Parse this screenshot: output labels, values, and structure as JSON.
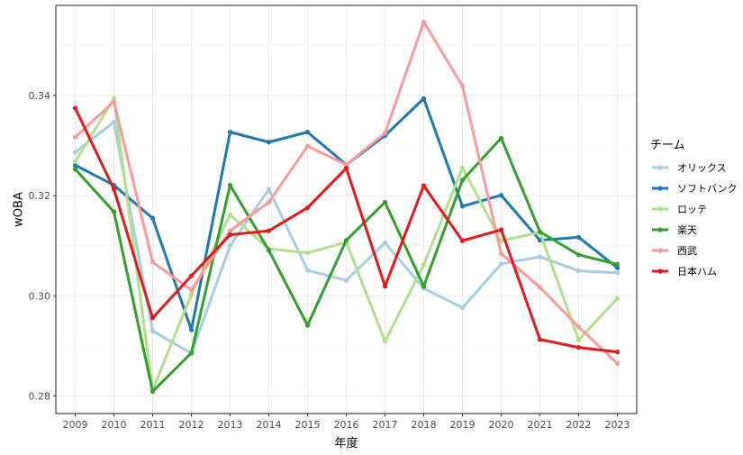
{
  "chart_data": {
    "type": "line",
    "xlabel": "年度",
    "ylabel": "wOBA",
    "x": [
      2009,
      2010,
      2011,
      2012,
      2013,
      2014,
      2015,
      2016,
      2017,
      2018,
      2019,
      2020,
      2021,
      2022,
      2023
    ],
    "xlim": [
      2008.5,
      2023.5
    ],
    "ylim": [
      0.2765,
      0.358
    ],
    "y_ticks": [
      0.28,
      0.3,
      0.32,
      0.34
    ],
    "y_tick_labels": [
      "0.28",
      "0.30",
      "0.32",
      "0.34"
    ],
    "grid": true,
    "legend": {
      "title": "チーム",
      "position": "right"
    },
    "series": [
      {
        "name": "オリックス",
        "color": "#a6cee3",
        "values": [
          0.3287,
          0.3347,
          0.293,
          0.2885,
          0.31,
          0.3213,
          0.3051,
          0.3031,
          0.3106,
          0.3015,
          0.2976,
          0.3064,
          0.3078,
          0.305,
          0.3046
        ]
      },
      {
        "name": "ソフトバンク",
        "color": "#1f78b4",
        "values": [
          0.3261,
          0.3221,
          0.3155,
          0.2932,
          0.3327,
          0.3307,
          0.3327,
          0.3262,
          0.332,
          0.3394,
          0.3179,
          0.3201,
          0.3111,
          0.3117,
          0.3056
        ]
      },
      {
        "name": "ロッテ",
        "color": "#b2df8a",
        "values": [
          0.3268,
          0.3394,
          0.2812,
          0.3003,
          0.3162,
          0.3094,
          0.3086,
          0.3107,
          0.2909,
          0.3062,
          0.3256,
          0.311,
          0.3127,
          0.2912,
          0.2995
        ]
      },
      {
        "name": "楽天",
        "color": "#33a02c",
        "values": [
          0.3253,
          0.3168,
          0.2809,
          0.2886,
          0.3221,
          0.3091,
          0.2941,
          0.3111,
          0.3187,
          0.3019,
          0.3231,
          0.3315,
          0.3128,
          0.3082,
          0.3063
        ]
      },
      {
        "name": "西武",
        "color": "#fb9a99",
        "values": [
          0.3317,
          0.3388,
          0.3067,
          0.3012,
          0.313,
          0.3187,
          0.3299,
          0.3262,
          0.3325,
          0.3547,
          0.3419,
          0.3084,
          0.3017,
          0.2938,
          0.2865
        ]
      },
      {
        "name": "日本ハム",
        "color": "#e31a1c",
        "values": [
          0.3375,
          0.3213,
          0.2956,
          0.304,
          0.3122,
          0.313,
          0.3176,
          0.3255,
          0.3019,
          0.322,
          0.311,
          0.3132,
          0.2913,
          0.2897,
          0.2888
        ]
      }
    ]
  }
}
